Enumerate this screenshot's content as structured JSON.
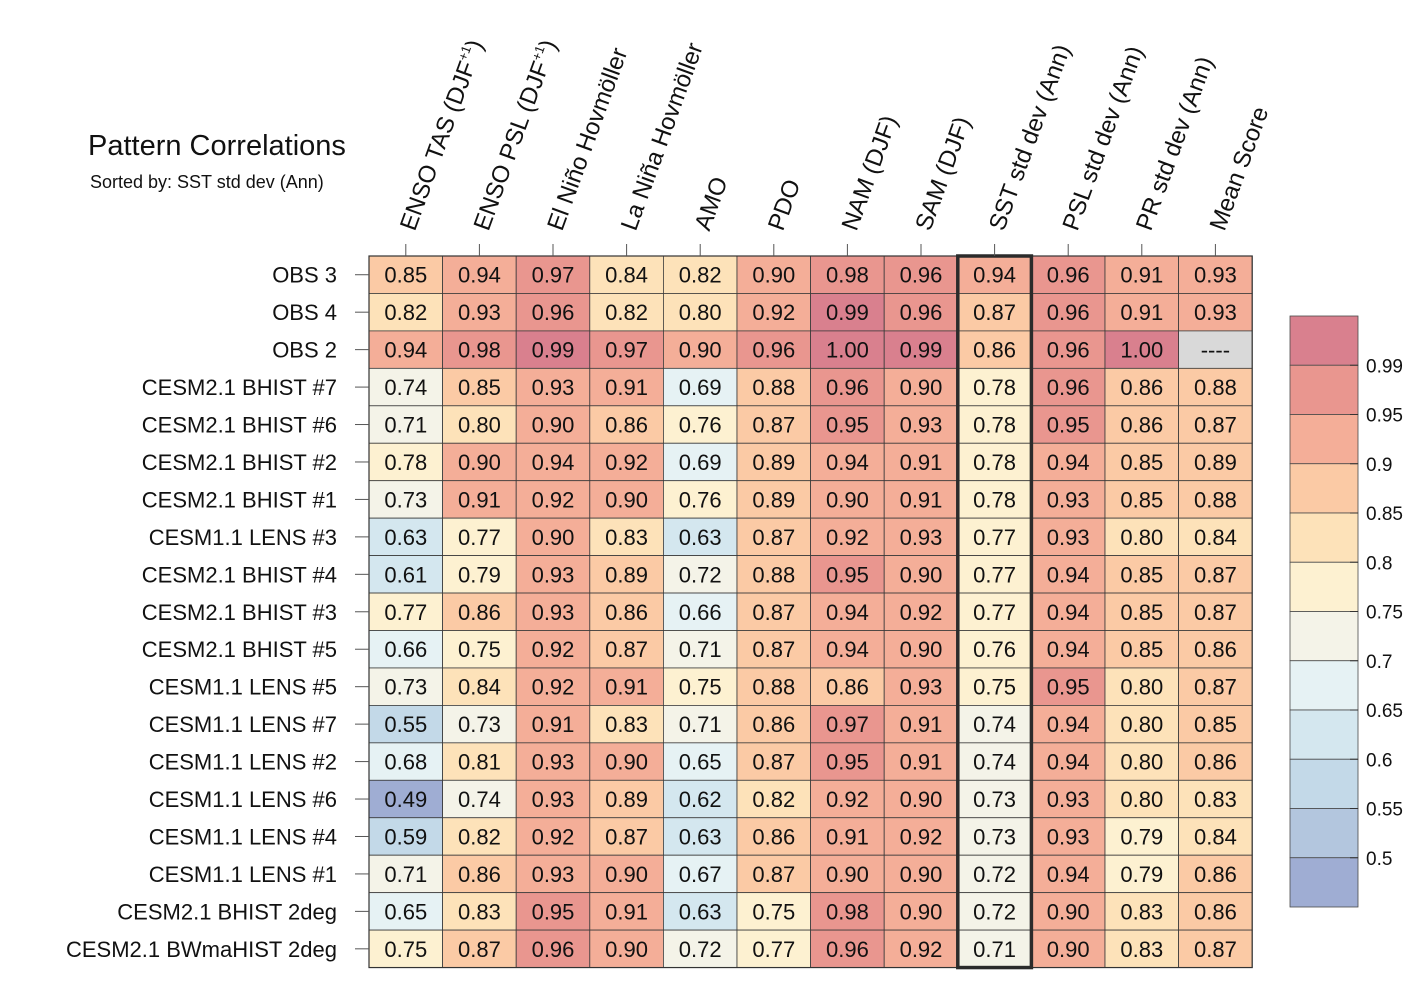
{
  "chart_data": {
    "type": "heatmap",
    "title": "Pattern Correlations",
    "subtitle": "Sorted by: SST std dev (Ann)",
    "columns": [
      {
        "label": "ENSO TAS (DJF",
        "sup": "+1",
        "close": ")"
      },
      {
        "label": "ENSO PSL (DJF",
        "sup": "+1",
        "close": ")"
      },
      {
        "label": "El Niño Hovmöller",
        "sup": "",
        "close": ""
      },
      {
        "label": "La Niña Hovmöller",
        "sup": "",
        "close": ""
      },
      {
        "label": "AMO",
        "sup": "",
        "close": ""
      },
      {
        "label": "PDO",
        "sup": "",
        "close": ""
      },
      {
        "label": "NAM (DJF)",
        "sup": "",
        "close": ""
      },
      {
        "label": "SAM (DJF)",
        "sup": "",
        "close": ""
      },
      {
        "label": "SST std dev (Ann)",
        "sup": "",
        "close": ""
      },
      {
        "label": "PSL std dev (Ann)",
        "sup": "",
        "close": ""
      },
      {
        "label": "PR std dev (Ann)",
        "sup": "",
        "close": ""
      },
      {
        "label": "Mean Score",
        "sup": "",
        "close": ""
      }
    ],
    "rows": [
      "OBS 3",
      "OBS 4",
      "OBS 2",
      "CESM2.1 BHIST #7",
      "CESM2.1 BHIST #6",
      "CESM2.1 BHIST #2",
      "CESM2.1 BHIST #1",
      "CESM1.1 LENS #3",
      "CESM2.1 BHIST #4",
      "CESM2.1 BHIST #3",
      "CESM2.1 BHIST #5",
      "CESM1.1 LENS #5",
      "CESM1.1 LENS #7",
      "CESM1.1 LENS #2",
      "CESM1.1 LENS #6",
      "CESM1.1 LENS #4",
      "CESM1.1 LENS #1",
      "CESM2.1 BHIST 2deg",
      "CESM2.1 BWmaHIST 2deg"
    ],
    "values": [
      [
        "0.85",
        "0.94",
        "0.97",
        "0.84",
        "0.82",
        "0.90",
        "0.98",
        "0.96",
        "0.94",
        "0.96",
        "0.91",
        "0.93"
      ],
      [
        "0.82",
        "0.93",
        "0.96",
        "0.82",
        "0.80",
        "0.92",
        "0.99",
        "0.96",
        "0.87",
        "0.96",
        "0.91",
        "0.93"
      ],
      [
        "0.94",
        "0.98",
        "0.99",
        "0.97",
        "0.90",
        "0.96",
        "1.00",
        "0.99",
        "0.86",
        "0.96",
        "1.00",
        "----"
      ],
      [
        "0.74",
        "0.85",
        "0.93",
        "0.91",
        "0.69",
        "0.88",
        "0.96",
        "0.90",
        "0.78",
        "0.96",
        "0.86",
        "0.88"
      ],
      [
        "0.71",
        "0.80",
        "0.90",
        "0.86",
        "0.76",
        "0.87",
        "0.95",
        "0.93",
        "0.78",
        "0.95",
        "0.86",
        "0.87"
      ],
      [
        "0.78",
        "0.90",
        "0.94",
        "0.92",
        "0.69",
        "0.89",
        "0.94",
        "0.91",
        "0.78",
        "0.94",
        "0.85",
        "0.89"
      ],
      [
        "0.73",
        "0.91",
        "0.92",
        "0.90",
        "0.76",
        "0.89",
        "0.90",
        "0.91",
        "0.78",
        "0.93",
        "0.85",
        "0.88"
      ],
      [
        "0.63",
        "0.77",
        "0.90",
        "0.83",
        "0.63",
        "0.87",
        "0.92",
        "0.93",
        "0.77",
        "0.93",
        "0.80",
        "0.84"
      ],
      [
        "0.61",
        "0.79",
        "0.93",
        "0.89",
        "0.72",
        "0.88",
        "0.95",
        "0.90",
        "0.77",
        "0.94",
        "0.85",
        "0.87"
      ],
      [
        "0.77",
        "0.86",
        "0.93",
        "0.86",
        "0.66",
        "0.87",
        "0.94",
        "0.92",
        "0.77",
        "0.94",
        "0.85",
        "0.87"
      ],
      [
        "0.66",
        "0.75",
        "0.92",
        "0.87",
        "0.71",
        "0.87",
        "0.94",
        "0.90",
        "0.76",
        "0.94",
        "0.85",
        "0.86"
      ],
      [
        "0.73",
        "0.84",
        "0.92",
        "0.91",
        "0.75",
        "0.88",
        "0.86",
        "0.93",
        "0.75",
        "0.95",
        "0.80",
        "0.87"
      ],
      [
        "0.55",
        "0.73",
        "0.91",
        "0.83",
        "0.71",
        "0.86",
        "0.97",
        "0.91",
        "0.74",
        "0.94",
        "0.80",
        "0.85"
      ],
      [
        "0.68",
        "0.81",
        "0.93",
        "0.90",
        "0.65",
        "0.87",
        "0.95",
        "0.91",
        "0.74",
        "0.94",
        "0.80",
        "0.86"
      ],
      [
        "0.49",
        "0.74",
        "0.93",
        "0.89",
        "0.62",
        "0.82",
        "0.92",
        "0.90",
        "0.73",
        "0.93",
        "0.80",
        "0.83"
      ],
      [
        "0.59",
        "0.82",
        "0.92",
        "0.87",
        "0.63",
        "0.86",
        "0.91",
        "0.92",
        "0.73",
        "0.93",
        "0.79",
        "0.84"
      ],
      [
        "0.71",
        "0.86",
        "0.93",
        "0.90",
        "0.67",
        "0.87",
        "0.90",
        "0.90",
        "0.72",
        "0.94",
        "0.79",
        "0.86"
      ],
      [
        "0.65",
        "0.83",
        "0.95",
        "0.91",
        "0.63",
        "0.75",
        "0.98",
        "0.90",
        "0.72",
        "0.90",
        "0.83",
        "0.86"
      ],
      [
        "0.75",
        "0.87",
        "0.96",
        "0.90",
        "0.72",
        "0.77",
        "0.96",
        "0.92",
        "0.71",
        "0.90",
        "0.83",
        "0.87"
      ]
    ],
    "highlight_column": "SST std dev (Ann)",
    "missing_label": "----",
    "colorbar": {
      "ticks": [
        "0.5",
        "0.55",
        "0.6",
        "0.65",
        "0.7",
        "0.75",
        "0.8",
        "0.85",
        "0.9",
        "0.95",
        "0.99"
      ],
      "bins": [
        {
          "min": 0.0,
          "max": 0.5,
          "color": "#9fadd3"
        },
        {
          "min": 0.5,
          "max": 0.55,
          "color": "#b3c6de"
        },
        {
          "min": 0.55,
          "max": 0.6,
          "color": "#c3d9e8"
        },
        {
          "min": 0.6,
          "max": 0.65,
          "color": "#d4e7ef"
        },
        {
          "min": 0.65,
          "max": 0.7,
          "color": "#e6f2f4"
        },
        {
          "min": 0.7,
          "max": 0.75,
          "color": "#f4f3e8"
        },
        {
          "min": 0.75,
          "max": 0.8,
          "color": "#fdf1d1"
        },
        {
          "min": 0.8,
          "max": 0.85,
          "color": "#fde2b9"
        },
        {
          "min": 0.85,
          "max": 0.9,
          "color": "#fbcaa5"
        },
        {
          "min": 0.9,
          "max": 0.95,
          "color": "#f4ae98"
        },
        {
          "min": 0.95,
          "max": 0.99,
          "color": "#e9968f"
        },
        {
          "min": 0.99,
          "max": 1.01,
          "color": "#d9808e"
        }
      ],
      "missing_color": "#d9d9d9"
    }
  }
}
